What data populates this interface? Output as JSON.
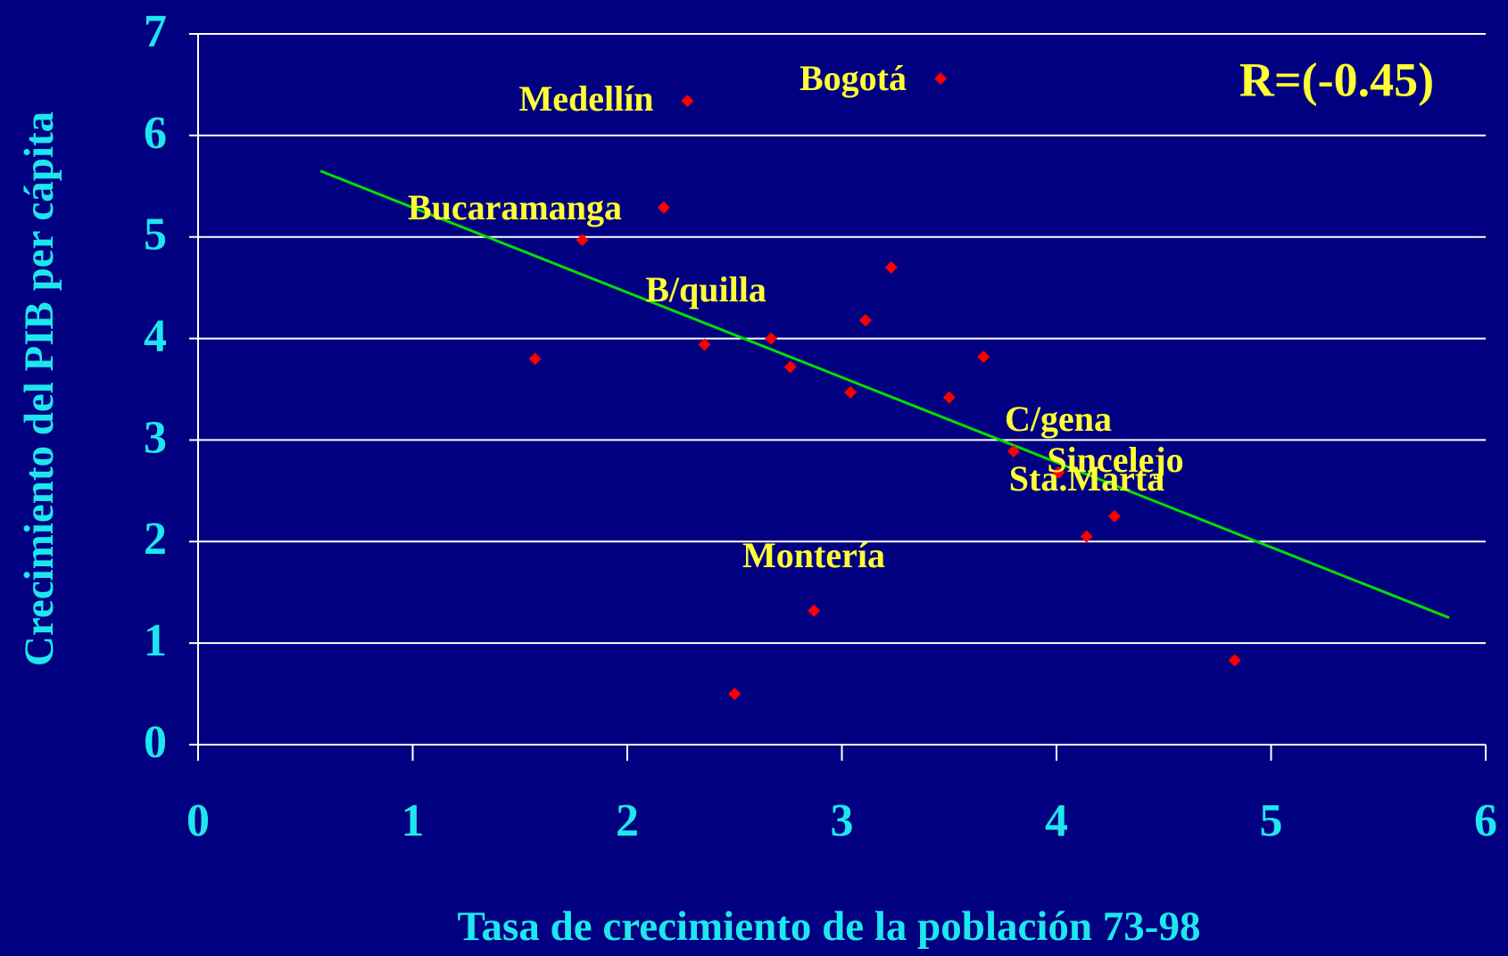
{
  "chart_data": {
    "type": "scatter",
    "xlabel": "Tasa de crecimiento de la población 73-98",
    "ylabel": "Crecimiento del PIB per cápita",
    "xlim": [
      0,
      6
    ],
    "ylim": [
      0,
      7
    ],
    "xticks": [
      0,
      1,
      2,
      3,
      4,
      5,
      6
    ],
    "yticks": [
      0,
      1,
      2,
      3,
      4,
      5,
      6,
      7
    ],
    "grid": true,
    "series": [
      {
        "color": "#ff0000",
        "x": [
          1.57,
          1.79,
          2.17,
          2.28,
          2.36,
          2.5,
          2.67,
          2.76,
          2.87,
          3.04,
          3.11,
          3.23,
          3.46,
          3.5,
          3.66,
          3.8,
          4.01,
          4.14,
          4.27,
          4.83
        ],
        "values": [
          3.8,
          4.97,
          5.29,
          6.34,
          3.94,
          0.5,
          4.0,
          3.72,
          1.32,
          3.47,
          4.18,
          4.7,
          6.56,
          3.42,
          3.82,
          2.89,
          2.68,
          2.05,
          2.25,
          0.83
        ]
      },
      {
        "color": "#00e000",
        "x": [
          0.57,
          5.83
        ],
        "values": [
          5.65,
          1.25
        ]
      }
    ],
    "annotations": [
      "Medellín",
      "Bogotá",
      "Bucaramanga",
      "B/quilla",
      "C/gena",
      "Sincelejo",
      "Sta.Marta",
      "Montería",
      "R=(-0.45)"
    ]
  }
}
